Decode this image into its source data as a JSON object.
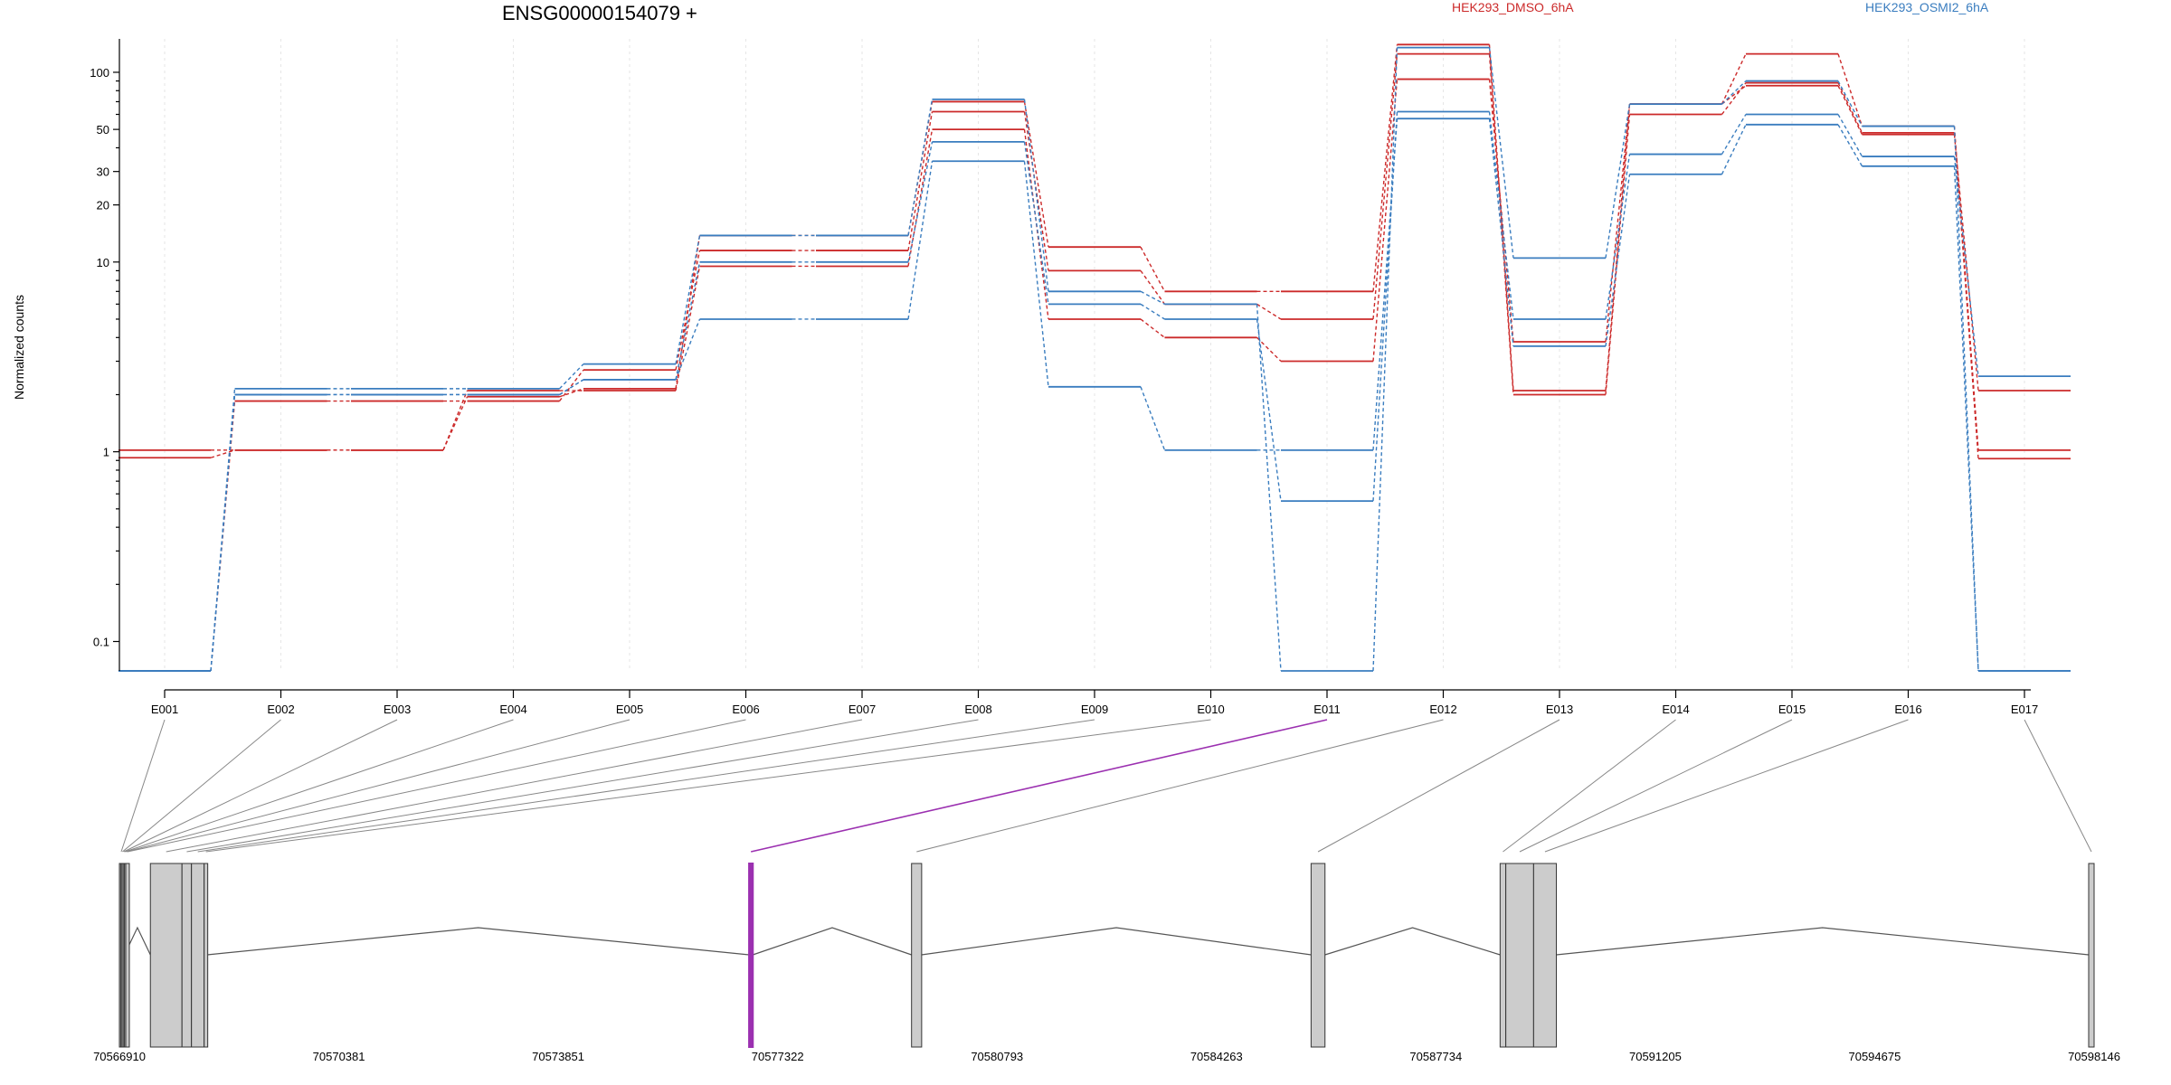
{
  "chart_data": {
    "type": "line",
    "title": "ENSG00000154079 +",
    "ylabel": "Normalized counts",
    "y_scale": "log",
    "ylim": [
      0.07,
      150
    ],
    "y_ticks": [
      0.1,
      1,
      10,
      20,
      30,
      50,
      100
    ],
    "y_tick_labels": [
      "0.1",
      "1",
      "10",
      "20",
      "30",
      "50",
      "100"
    ],
    "categories": [
      "E001",
      "E002",
      "E003",
      "E004",
      "E005",
      "E006",
      "E007",
      "E008",
      "E009",
      "E010",
      "E011",
      "E012",
      "E013",
      "E014",
      "E015",
      "E016",
      "E017"
    ],
    "legend": [
      {
        "label": "HEK293_DMSO_6hA",
        "color": "#cc2a2a"
      },
      {
        "label": "HEK293_OSMI2_6hA",
        "color": "#3a7dbf"
      }
    ],
    "series": [
      {
        "group": "HEK293_DMSO_6hA",
        "color": "#cc2a2a",
        "values": [
          0.93,
          1.02,
          1.02,
          1.95,
          2.15,
          13.8,
          13.8,
          70,
          12,
          7,
          7,
          140,
          2.1,
          68,
          125,
          52,
          1.02
        ]
      },
      {
        "group": "HEK293_DMSO_6hA",
        "color": "#cc2a2a",
        "values": [
          0.07,
          1.85,
          1.85,
          1.85,
          2.7,
          11.5,
          11.5,
          62,
          9,
          6,
          5,
          125,
          2.0,
          60,
          88,
          48,
          0.92
        ]
      },
      {
        "group": "HEK293_DMSO_6hA",
        "color": "#cc2a2a",
        "values": [
          1.02,
          1.02,
          1.02,
          2.1,
          2.1,
          9.5,
          9.5,
          50,
          5,
          4,
          3,
          92,
          3.8,
          68,
          85,
          47,
          2.1
        ]
      },
      {
        "group": "HEK293_OSMI2_6hA",
        "color": "#3a7dbf",
        "values": [
          0.07,
          2.15,
          2.15,
          2.15,
          2.9,
          13.8,
          13.8,
          72,
          7,
          6,
          0.07,
          135,
          10.5,
          68,
          90,
          52,
          0.07
        ]
      },
      {
        "group": "HEK293_OSMI2_6hA",
        "color": "#3a7dbf",
        "values": [
          0.07,
          2.0,
          2.0,
          2.0,
          2.4,
          10,
          10,
          43,
          6,
          5,
          0.55,
          62,
          5,
          37,
          60,
          36,
          2.5
        ]
      },
      {
        "group": "HEK293_OSMI2_6hA",
        "color": "#3a7dbf",
        "values": [
          0.07,
          2.0,
          2.0,
          2.0,
          2.4,
          5,
          5,
          34,
          2.2,
          1.02,
          1.02,
          57,
          3.6,
          29,
          53,
          32,
          0.07
        ]
      }
    ],
    "highlight_exon": "E011",
    "highlight_color": "#9b30b0",
    "genomic_axis": {
      "range": [
        70566910,
        70598146
      ],
      "tick_labels": [
        "70566910",
        "70570381",
        "70573851",
        "70577322",
        "70580793",
        "70584263",
        "70587734",
        "70591205",
        "70594675",
        "70598146"
      ],
      "exons": [
        {
          "id": "E001",
          "start": 70566910,
          "end": 70566930
        },
        {
          "id": "E002",
          "start": 70566930,
          "end": 70566950
        },
        {
          "id": "E003",
          "start": 70566950,
          "end": 70566970
        },
        {
          "id": "E004",
          "start": 70566970,
          "end": 70566990
        },
        {
          "id": "E005",
          "start": 70566990,
          "end": 70567010
        },
        {
          "id": "E006",
          "start": 70567010,
          "end": 70567060
        },
        {
          "id": "E007",
          "start": 70567400,
          "end": 70567900
        },
        {
          "id": "E008",
          "start": 70567900,
          "end": 70568050
        },
        {
          "id": "E009",
          "start": 70568050,
          "end": 70568250
        },
        {
          "id": "E010",
          "start": 70568250,
          "end": 70568300
        },
        {
          "id": "E011",
          "start": 70576870,
          "end": 70576930
        },
        {
          "id": "E012",
          "start": 70579440,
          "end": 70579600
        },
        {
          "id": "E013",
          "start": 70585760,
          "end": 70585980
        },
        {
          "id": "E014",
          "start": 70588750,
          "end": 70588840
        },
        {
          "id": "E015",
          "start": 70588840,
          "end": 70589280
        },
        {
          "id": "E016",
          "start": 70589280,
          "end": 70589640
        },
        {
          "id": "E017",
          "start": 70598060,
          "end": 70598146
        }
      ],
      "introns": [
        [
          70566990,
          70567400
        ],
        [
          70568300,
          70576870
        ],
        [
          70576930,
          70579440
        ],
        [
          70579600,
          70585760
        ],
        [
          70585980,
          70588750
        ],
        [
          70589640,
          70598060
        ]
      ]
    }
  }
}
